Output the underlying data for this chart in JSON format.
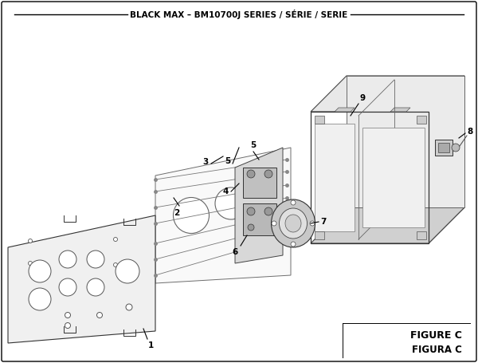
{
  "title": "BLACK MAX – BM10700J SERIES / SÉRIE / SERIE",
  "figure_label": "FIGURE C",
  "figure_sublabel": "FIGURA C",
  "bg_color": "#ffffff",
  "border_color": "#000000"
}
